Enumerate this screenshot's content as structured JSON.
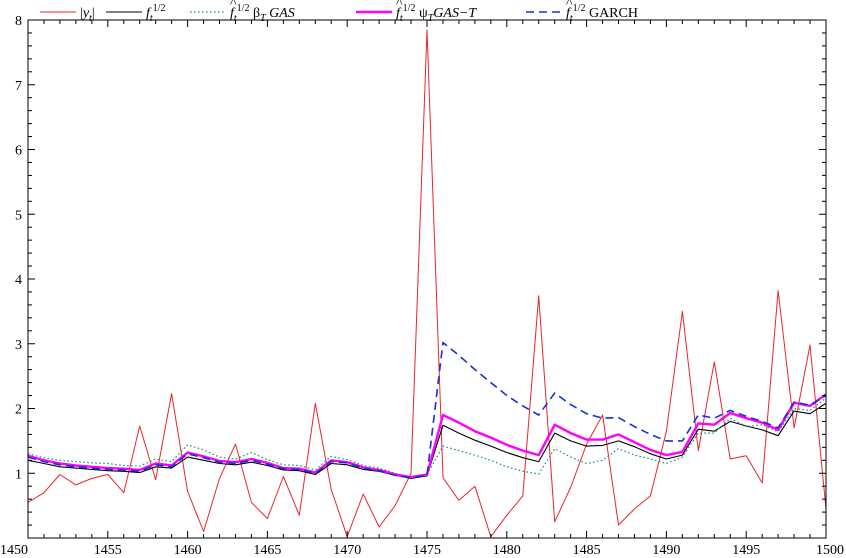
{
  "chart_data": {
    "type": "line",
    "title": "",
    "xlabel": "",
    "ylabel": "",
    "xlim": [
      1450,
      1500
    ],
    "ylim": [
      0,
      8
    ],
    "x_ticks": [
      1450,
      1455,
      1460,
      1465,
      1470,
      1475,
      1480,
      1485,
      1490,
      1495,
      1500
    ],
    "y_ticks": [
      1,
      2,
      3,
      4,
      5,
      6,
      7,
      8
    ],
    "grid": false,
    "legend_position": "top",
    "series": [
      {
        "name": "|y_t|",
        "legend_label": "|yt|",
        "color": "#e8262b",
        "dash": "solid",
        "x": [
          1450,
          1451,
          1452,
          1453,
          1454,
          1455,
          1456,
          1457,
          1458,
          1459,
          1460,
          1461,
          1462,
          1463,
          1464,
          1465,
          1466,
          1467,
          1468,
          1469,
          1470,
          1471,
          1472,
          1473,
          1474,
          1475,
          1476,
          1477,
          1478,
          1479,
          1480,
          1481,
          1482,
          1483,
          1484,
          1485,
          1486,
          1487,
          1488,
          1489,
          1490,
          1491,
          1492,
          1493,
          1494,
          1495,
          1496,
          1497,
          1498,
          1499,
          1500
        ],
        "y": [
          0.55,
          0.7,
          0.98,
          0.82,
          0.92,
          0.98,
          0.7,
          1.73,
          0.9,
          2.23,
          0.72,
          0.1,
          0.92,
          1.45,
          0.55,
          0.3,
          0.95,
          0.35,
          2.08,
          0.75,
          0.02,
          0.68,
          0.17,
          0.5,
          1.0,
          7.85,
          0.93,
          0.58,
          0.8,
          0.02,
          0.35,
          0.65,
          3.74,
          0.25,
          0.78,
          1.45,
          1.9,
          0.2,
          0.45,
          0.65,
          1.65,
          3.5,
          1.35,
          2.72,
          1.22,
          1.27,
          0.85,
          3.82,
          1.7,
          2.98,
          0.45
        ]
      },
      {
        "name": "f_t^{1/2}",
        "legend_label": "ft1/2",
        "color": "#000000",
        "dash": "solid",
        "x": [
          1450,
          1451,
          1452,
          1453,
          1454,
          1455,
          1456,
          1457,
          1458,
          1459,
          1460,
          1461,
          1462,
          1463,
          1464,
          1465,
          1466,
          1467,
          1468,
          1469,
          1470,
          1471,
          1472,
          1473,
          1474,
          1475,
          1476,
          1477,
          1478,
          1479,
          1480,
          1481,
          1482,
          1483,
          1484,
          1485,
          1486,
          1487,
          1488,
          1489,
          1490,
          1491,
          1492,
          1493,
          1494,
          1495,
          1496,
          1497,
          1498,
          1499,
          1500
        ],
        "y": [
          1.2,
          1.15,
          1.1,
          1.08,
          1.06,
          1.04,
          1.03,
          1.01,
          1.1,
          1.08,
          1.25,
          1.2,
          1.15,
          1.13,
          1.17,
          1.12,
          1.05,
          1.04,
          0.98,
          1.15,
          1.13,
          1.06,
          1.03,
          0.97,
          0.92,
          0.96,
          1.74,
          1.62,
          1.51,
          1.42,
          1.32,
          1.24,
          1.18,
          1.62,
          1.5,
          1.42,
          1.43,
          1.5,
          1.41,
          1.3,
          1.22,
          1.28,
          1.68,
          1.65,
          1.8,
          1.73,
          1.67,
          1.58,
          1.96,
          1.92,
          2.08
        ]
      },
      {
        "name": "f^_t^{1/2} beta_T GAS",
        "legend_label": "f^t1/2 βT GAS",
        "color": "#1f8a8a",
        "dash": "dotted",
        "x": [
          1450,
          1451,
          1452,
          1453,
          1454,
          1455,
          1456,
          1457,
          1458,
          1459,
          1460,
          1461,
          1462,
          1463,
          1464,
          1465,
          1466,
          1467,
          1468,
          1469,
          1470,
          1471,
          1472,
          1473,
          1474,
          1475,
          1476,
          1477,
          1478,
          1479,
          1480,
          1481,
          1482,
          1483,
          1484,
          1485,
          1486,
          1487,
          1488,
          1489,
          1490,
          1491,
          1492,
          1493,
          1494,
          1495,
          1496,
          1497,
          1498,
          1499,
          1500
        ],
        "y": [
          1.3,
          1.24,
          1.2,
          1.18,
          1.16,
          1.15,
          1.12,
          1.11,
          1.22,
          1.18,
          1.44,
          1.36,
          1.25,
          1.22,
          1.32,
          1.21,
          1.13,
          1.12,
          1.05,
          1.26,
          1.21,
          1.12,
          1.08,
          1.0,
          0.93,
          0.98,
          1.42,
          1.35,
          1.28,
          1.2,
          1.1,
          1.03,
          0.99,
          1.38,
          1.25,
          1.15,
          1.2,
          1.38,
          1.28,
          1.22,
          1.15,
          1.25,
          1.62,
          1.62,
          1.85,
          1.72,
          1.75,
          1.64,
          2.0,
          1.97,
          2.16
        ]
      },
      {
        "name": "f^_t^{1/2} psi_T GAS-T",
        "legend_label": "f^t1/2 ψT GAS−T",
        "color": "#ff00ff",
        "dash": "solid",
        "x": [
          1450,
          1451,
          1452,
          1453,
          1454,
          1455,
          1456,
          1457,
          1458,
          1459,
          1460,
          1461,
          1462,
          1463,
          1464,
          1465,
          1466,
          1467,
          1468,
          1469,
          1470,
          1471,
          1472,
          1473,
          1474,
          1475,
          1476,
          1477,
          1478,
          1479,
          1480,
          1481,
          1482,
          1483,
          1484,
          1485,
          1486,
          1487,
          1488,
          1489,
          1490,
          1491,
          1492,
          1493,
          1494,
          1495,
          1496,
          1497,
          1498,
          1499,
          1500
        ],
        "y": [
          1.27,
          1.2,
          1.15,
          1.12,
          1.1,
          1.08,
          1.07,
          1.05,
          1.15,
          1.12,
          1.32,
          1.26,
          1.19,
          1.17,
          1.22,
          1.16,
          1.08,
          1.07,
          1.01,
          1.2,
          1.17,
          1.09,
          1.05,
          0.98,
          0.94,
          0.98,
          1.9,
          1.78,
          1.65,
          1.55,
          1.44,
          1.35,
          1.28,
          1.75,
          1.62,
          1.52,
          1.52,
          1.6,
          1.48,
          1.36,
          1.28,
          1.33,
          1.77,
          1.75,
          1.93,
          1.85,
          1.78,
          1.67,
          2.09,
          2.04,
          2.22
        ]
      },
      {
        "name": "f^_t^{1/2} GARCH",
        "legend_label": "f^t1/2 GARCH",
        "color": "#1532d6",
        "dash": "dashed",
        "x": [
          1450,
          1451,
          1452,
          1453,
          1454,
          1455,
          1456,
          1457,
          1458,
          1459,
          1460,
          1461,
          1462,
          1463,
          1464,
          1465,
          1466,
          1467,
          1468,
          1469,
          1470,
          1471,
          1472,
          1473,
          1474,
          1475,
          1476,
          1477,
          1478,
          1479,
          1480,
          1481,
          1482,
          1483,
          1484,
          1485,
          1486,
          1487,
          1488,
          1489,
          1490,
          1491,
          1492,
          1493,
          1494,
          1495,
          1496,
          1497,
          1498,
          1499,
          1500
        ],
        "y": [
          1.25,
          1.18,
          1.13,
          1.1,
          1.08,
          1.06,
          1.05,
          1.03,
          1.13,
          1.1,
          1.3,
          1.24,
          1.17,
          1.15,
          1.2,
          1.14,
          1.07,
          1.06,
          1.0,
          1.18,
          1.16,
          1.08,
          1.04,
          0.97,
          0.93,
          0.97,
          3.02,
          2.82,
          2.6,
          2.4,
          2.2,
          2.04,
          1.9,
          2.24,
          2.06,
          1.92,
          1.85,
          1.86,
          1.72,
          1.6,
          1.5,
          1.5,
          1.9,
          1.85,
          1.97,
          1.88,
          1.8,
          1.7,
          2.1,
          2.05,
          2.2
        ]
      }
    ]
  }
}
